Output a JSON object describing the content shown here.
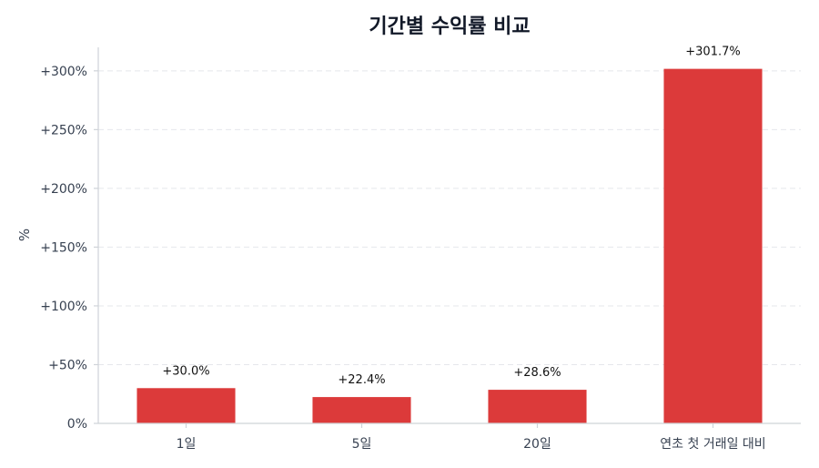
{
  "chart_data": {
    "type": "bar",
    "title": "기간별 수익률 비교",
    "xlabel": "",
    "ylabel": "%",
    "categories": [
      "1일",
      "5일",
      "20일",
      "연초 첫 거래일 대비"
    ],
    "values": [
      30.0,
      22.4,
      28.6,
      301.7
    ],
    "data_labels": [
      "+30.0%",
      "+22.4%",
      "+28.6%",
      "+301.7%"
    ],
    "ylim": [
      0,
      320
    ],
    "yticks": [
      0,
      50,
      100,
      150,
      200,
      250,
      300
    ],
    "ytick_labels": [
      "0%",
      "+50%",
      "+100%",
      "+150%",
      "+200%",
      "+250%",
      "+300%"
    ],
    "grid": true,
    "bar_color": "#dc3a3a"
  }
}
